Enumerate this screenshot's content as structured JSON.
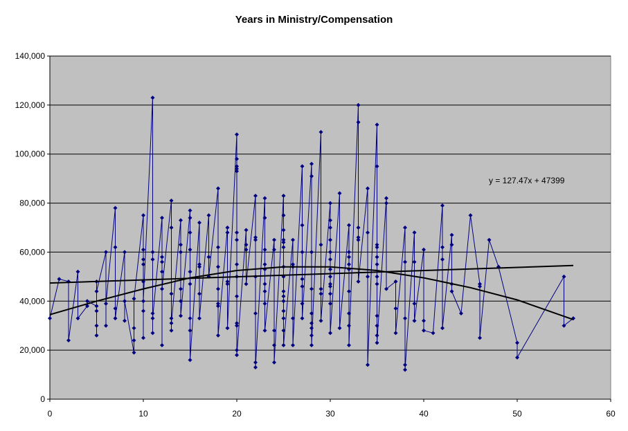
{
  "chart_data": {
    "type": "scatter",
    "title": "Years in Ministry/Compensation",
    "xlabel": "",
    "ylabel": "",
    "xlim": [
      0,
      60
    ],
    "ylim": [
      0,
      140000
    ],
    "x_ticks": [
      "0",
      "10",
      "20",
      "30",
      "40",
      "50",
      "60"
    ],
    "y_ticks": [
      "0",
      "20,000",
      "40,000",
      "60,000",
      "80,000",
      "100,000",
      "120,000",
      "140,000"
    ],
    "grid": "horizontal",
    "legend": "none",
    "annotation": "y = 127.47x + 47399",
    "colors": {
      "plot_background": "#c0c0c0",
      "series": "#000080",
      "trendline": "#000000"
    },
    "series": [
      {
        "marker": "diamond",
        "connected": true,
        "points": [
          [
            0,
            33000
          ],
          [
            1,
            49000
          ],
          [
            2,
            48000
          ],
          [
            2,
            24000
          ],
          [
            3,
            52000
          ],
          [
            3,
            33000
          ],
          [
            4,
            38000
          ],
          [
            4,
            40000
          ],
          [
            5,
            38000
          ],
          [
            5,
            48000
          ],
          [
            5,
            26000
          ],
          [
            5,
            30000
          ],
          [
            5,
            36000
          ],
          [
            5,
            44000
          ],
          [
            6,
            60000
          ],
          [
            6,
            30000
          ],
          [
            6,
            39000
          ],
          [
            7,
            78000
          ],
          [
            7,
            62000
          ],
          [
            7,
            37000
          ],
          [
            7,
            33000
          ],
          [
            8,
            60000
          ],
          [
            8,
            32000
          ],
          [
            8,
            40000
          ],
          [
            9,
            19000
          ],
          [
            9,
            29000
          ],
          [
            9,
            24000
          ],
          [
            9,
            41000
          ],
          [
            10,
            75000
          ],
          [
            10,
            61000
          ],
          [
            10,
            57000
          ],
          [
            10,
            48000
          ],
          [
            10,
            25000
          ],
          [
            10,
            36000
          ],
          [
            10,
            55000
          ],
          [
            10,
            40000
          ],
          [
            11,
            123000
          ],
          [
            11,
            57000
          ],
          [
            11,
            60000
          ],
          [
            11,
            35000
          ],
          [
            11,
            27000
          ],
          [
            11,
            33000
          ],
          [
            12,
            74000
          ],
          [
            12,
            56000
          ],
          [
            12,
            58000
          ],
          [
            12,
            52000
          ],
          [
            12,
            22000
          ],
          [
            12,
            45000
          ],
          [
            13,
            81000
          ],
          [
            13,
            70000
          ],
          [
            13,
            43000
          ],
          [
            13,
            33000
          ],
          [
            13,
            28000
          ],
          [
            13,
            31000
          ],
          [
            14,
            73000
          ],
          [
            14,
            63000
          ],
          [
            14,
            60000
          ],
          [
            14,
            45000
          ],
          [
            14,
            40000
          ],
          [
            14,
            34000
          ],
          [
            15,
            77000
          ],
          [
            15,
            74000
          ],
          [
            15,
            68000
          ],
          [
            15,
            61000
          ],
          [
            15,
            52000
          ],
          [
            15,
            47000
          ],
          [
            15,
            33000
          ],
          [
            15,
            28000
          ],
          [
            15,
            16000
          ],
          [
            16,
            72000
          ],
          [
            16,
            55000
          ],
          [
            16,
            54000
          ],
          [
            16,
            43000
          ],
          [
            16,
            33000
          ],
          [
            17,
            75000
          ],
          [
            17,
            58000
          ],
          [
            17,
            50000
          ],
          [
            18,
            86000
          ],
          [
            18,
            62000
          ],
          [
            18,
            54000
          ],
          [
            18,
            45000
          ],
          [
            18,
            39000
          ],
          [
            18,
            38000
          ],
          [
            18,
            26000
          ],
          [
            19,
            70000
          ],
          [
            19,
            68000
          ],
          [
            19,
            48000
          ],
          [
            19,
            47000
          ],
          [
            19,
            29000
          ],
          [
            20,
            108000
          ],
          [
            20,
            98000
          ],
          [
            20,
            95000
          ],
          [
            20,
            94000
          ],
          [
            20,
            93000
          ],
          [
            20,
            68000
          ],
          [
            20,
            65000
          ],
          [
            20,
            55000
          ],
          [
            20,
            50000
          ],
          [
            20,
            42000
          ],
          [
            20,
            31000
          ],
          [
            20,
            30000
          ],
          [
            20,
            20000
          ],
          [
            20,
            18000
          ],
          [
            21,
            69000
          ],
          [
            21,
            63000
          ],
          [
            21,
            61000
          ],
          [
            21,
            47000
          ],
          [
            22,
            83000
          ],
          [
            22,
            66000
          ],
          [
            22,
            65000
          ],
          [
            22,
            50000
          ],
          [
            22,
            35000
          ],
          [
            22,
            15000
          ],
          [
            22,
            13000
          ],
          [
            23,
            82000
          ],
          [
            23,
            74000
          ],
          [
            23,
            61000
          ],
          [
            23,
            55000
          ],
          [
            23,
            53000
          ],
          [
            23,
            47000
          ],
          [
            23,
            44000
          ],
          [
            23,
            39000
          ],
          [
            23,
            28000
          ],
          [
            24,
            65000
          ],
          [
            24,
            61000
          ],
          [
            24,
            28000
          ],
          [
            24,
            22000
          ],
          [
            24,
            15000
          ],
          [
            25,
            83000
          ],
          [
            25,
            75000
          ],
          [
            25,
            69000
          ],
          [
            25,
            65000
          ],
          [
            25,
            64000
          ],
          [
            25,
            62000
          ],
          [
            25,
            54000
          ],
          [
            25,
            50000
          ],
          [
            25,
            44000
          ],
          [
            25,
            42000
          ],
          [
            25,
            40000
          ],
          [
            25,
            36000
          ],
          [
            25,
            33000
          ],
          [
            25,
            28000
          ],
          [
            25,
            22000
          ],
          [
            26,
            65000
          ],
          [
            26,
            55000
          ],
          [
            26,
            54000
          ],
          [
            26,
            33000
          ],
          [
            26,
            22000
          ],
          [
            27,
            95000
          ],
          [
            27,
            71000
          ],
          [
            27,
            60000
          ],
          [
            27,
            49000
          ],
          [
            27,
            46000
          ],
          [
            27,
            39000
          ],
          [
            27,
            33000
          ],
          [
            28,
            96000
          ],
          [
            28,
            91000
          ],
          [
            28,
            60000
          ],
          [
            28,
            45000
          ],
          [
            28,
            35000
          ],
          [
            28,
            31000
          ],
          [
            28,
            29000
          ],
          [
            28,
            26000
          ],
          [
            28,
            22000
          ],
          [
            29,
            109000
          ],
          [
            29,
            63000
          ],
          [
            29,
            45000
          ],
          [
            29,
            43000
          ],
          [
            29,
            32000
          ],
          [
            30,
            80000
          ],
          [
            30,
            73000
          ],
          [
            30,
            70000
          ],
          [
            30,
            65000
          ],
          [
            30,
            60000
          ],
          [
            30,
            57000
          ],
          [
            30,
            53000
          ],
          [
            30,
            50000
          ],
          [
            30,
            47000
          ],
          [
            30,
            46000
          ],
          [
            30,
            43000
          ],
          [
            30,
            39000
          ],
          [
            30,
            27000
          ],
          [
            31,
            84000
          ],
          [
            31,
            29000
          ],
          [
            32,
            71000
          ],
          [
            32,
            60000
          ],
          [
            32,
            58000
          ],
          [
            32,
            55000
          ],
          [
            32,
            53000
          ],
          [
            32,
            44000
          ],
          [
            32,
            35000
          ],
          [
            32,
            30000
          ],
          [
            32,
            22000
          ],
          [
            33,
            120000
          ],
          [
            33,
            113000
          ],
          [
            33,
            70000
          ],
          [
            33,
            66000
          ],
          [
            33,
            65000
          ],
          [
            33,
            48000
          ],
          [
            34,
            86000
          ],
          [
            34,
            68000
          ],
          [
            34,
            50000
          ],
          [
            34,
            14000
          ],
          [
            35,
            112000
          ],
          [
            35,
            95000
          ],
          [
            35,
            63000
          ],
          [
            35,
            62000
          ],
          [
            35,
            58000
          ],
          [
            35,
            55000
          ],
          [
            35,
            50000
          ],
          [
            35,
            47000
          ],
          [
            35,
            34000
          ],
          [
            35,
            30000
          ],
          [
            35,
            26000
          ],
          [
            35,
            23000
          ],
          [
            36,
            82000
          ],
          [
            36,
            80000
          ],
          [
            36,
            45000
          ],
          [
            37,
            48000
          ],
          [
            37,
            37000
          ],
          [
            37,
            27000
          ],
          [
            38,
            70000
          ],
          [
            38,
            56000
          ],
          [
            38,
            33000
          ],
          [
            38,
            14000
          ],
          [
            38,
            12000
          ],
          [
            39,
            68000
          ],
          [
            39,
            56000
          ],
          [
            39,
            39000
          ],
          [
            39,
            32000
          ],
          [
            40,
            61000
          ],
          [
            40,
            32000
          ],
          [
            40,
            28000
          ],
          [
            41,
            27000
          ],
          [
            42,
            79000
          ],
          [
            42,
            62000
          ],
          [
            42,
            57000
          ],
          [
            42,
            29000
          ],
          [
            43,
            67000
          ],
          [
            43,
            63000
          ],
          [
            43,
            47000
          ],
          [
            43,
            44000
          ],
          [
            44,
            35000
          ],
          [
            45,
            75000
          ],
          [
            46,
            47000
          ],
          [
            46,
            46000
          ],
          [
            46,
            25000
          ],
          [
            47,
            65000
          ],
          [
            48,
            54000
          ],
          [
            50,
            23000
          ],
          [
            50,
            17000
          ],
          [
            55,
            50000
          ],
          [
            55,
            30000
          ],
          [
            56,
            33000
          ]
        ]
      }
    ],
    "trendlines": [
      {
        "type": "linear",
        "slope": 127.47,
        "intercept": 47399,
        "x_range": [
          0,
          56
        ]
      },
      {
        "type": "polynomial",
        "curve": [
          [
            0,
            34500
          ],
          [
            5,
            40000
          ],
          [
            10,
            45000
          ],
          [
            15,
            49500
          ],
          [
            20,
            52500
          ],
          [
            25,
            54000
          ],
          [
            30,
            54000
          ],
          [
            35,
            52500
          ],
          [
            40,
            49500
          ],
          [
            45,
            45500
          ],
          [
            50,
            40500
          ],
          [
            56,
            32500
          ]
        ]
      }
    ]
  }
}
